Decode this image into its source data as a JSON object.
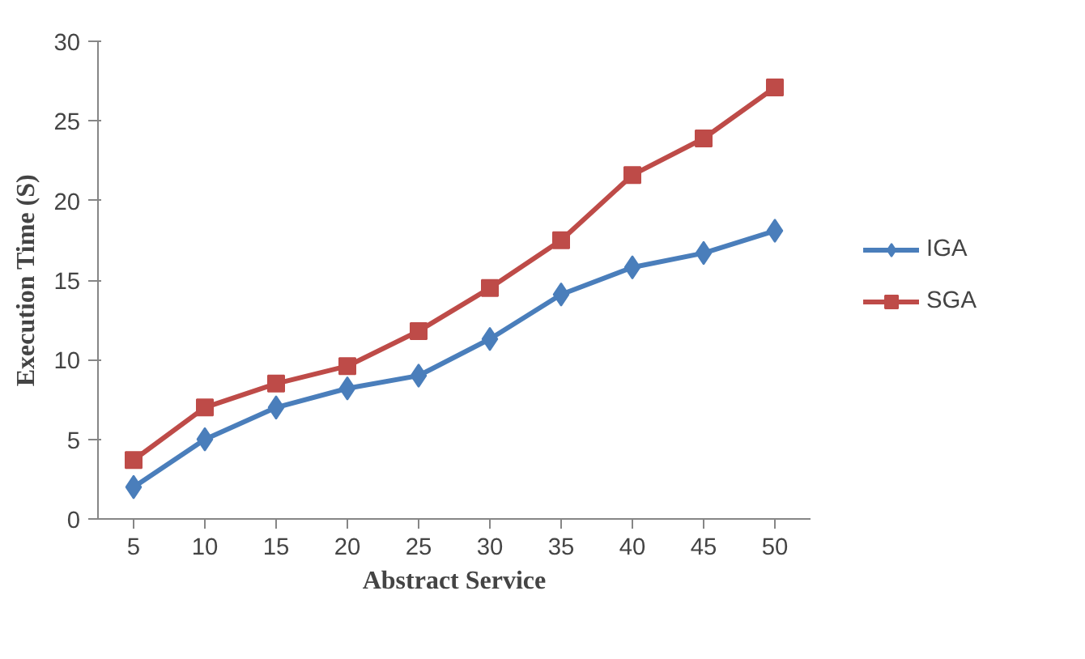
{
  "chart_data": {
    "type": "line",
    "xlabel": "Abstract Service",
    "ylabel": "Execution Time (S)",
    "categories": [
      "5",
      "10",
      "15",
      "20",
      "25",
      "30",
      "35",
      "40",
      "45",
      "50"
    ],
    "series": [
      {
        "name": "IGA",
        "color": "#4a7ebb",
        "marker": "diamond",
        "values": [
          2,
          5,
          7,
          8.2,
          9,
          11.3,
          14.1,
          15.8,
          16.7,
          18.1
        ]
      },
      {
        "name": "SGA",
        "color": "#be4b48",
        "marker": "square",
        "values": [
          3.7,
          7,
          8.5,
          9.6,
          11.8,
          14.5,
          17.5,
          21.6,
          23.9,
          27.1
        ]
      }
    ],
    "ylim": [
      0,
      30
    ],
    "yticks": [
      0,
      5,
      10,
      15,
      20,
      25,
      30
    ],
    "grid": false,
    "legend": "right",
    "line_style": "solid"
  }
}
